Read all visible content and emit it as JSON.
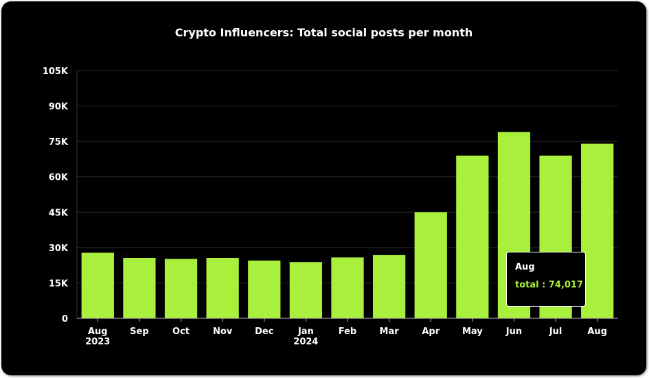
{
  "colors": {
    "background": "#000000",
    "bar": "#a9f03c",
    "grid": "#2a2a2a",
    "text": "#ffffff",
    "tooltip_value": "#a9f03c"
  },
  "chart_data": {
    "type": "bar",
    "title": "Crypto Influencers: Total social posts per month",
    "xlabel": "",
    "ylabel": "",
    "ylim": [
      0,
      105000
    ],
    "yticks": [
      0,
      15000,
      30000,
      45000,
      60000,
      75000,
      90000,
      105000
    ],
    "ytick_labels": [
      "0",
      "15K",
      "30K",
      "45K",
      "60K",
      "75K",
      "90K",
      "105K"
    ],
    "grid": true,
    "categories": [
      [
        "Aug",
        "2023"
      ],
      [
        "Sep"
      ],
      [
        "Oct"
      ],
      [
        "Nov"
      ],
      [
        "Dec"
      ],
      [
        "Jan",
        "2024"
      ],
      [
        "Feb"
      ],
      [
        "Mar"
      ],
      [
        "Apr"
      ],
      [
        "May"
      ],
      [
        "Jun"
      ],
      [
        "Jul"
      ],
      [
        "Aug"
      ]
    ],
    "series": [
      {
        "values": [
          27800,
          25600,
          25200,
          25600,
          24500,
          23800,
          25800,
          26800,
          45000,
          69000,
          79000,
          69000,
          74017
        ]
      }
    ],
    "tooltip": {
      "title": "Aug",
      "label": "total",
      "value": "74,017"
    }
  }
}
